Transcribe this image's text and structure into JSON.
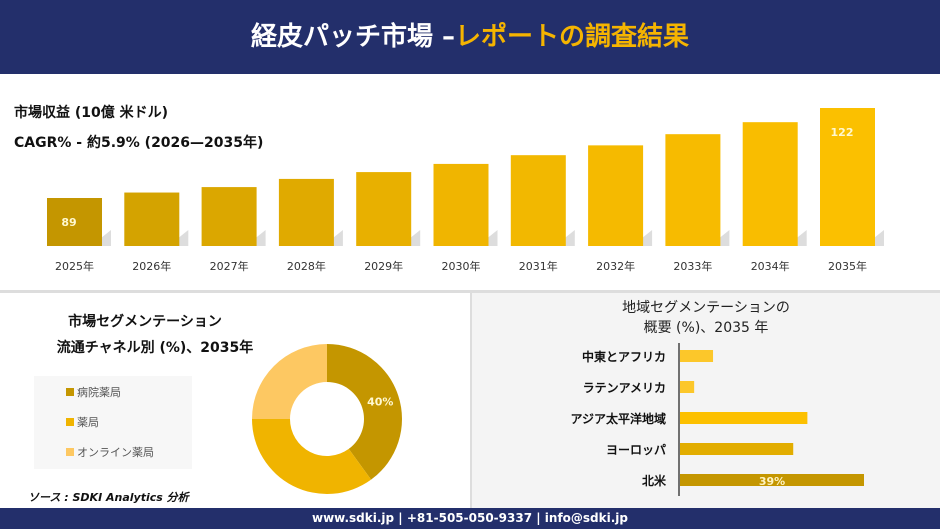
{
  "header": {
    "title_main": "経皮パッチ市場 –",
    "title_accent": "レポートの調査結果"
  },
  "revenue": {
    "label": "市場収益 (10億 米ドル)",
    "cagr": "CAGR% - 約5.9% (2026—2035年)"
  },
  "chart_data": [
    {
      "type": "bar",
      "categories": [
        "2025年",
        "2026年",
        "2027年",
        "2028年",
        "2029年",
        "2030年",
        "2031年",
        "2032年",
        "2033年",
        "2034年",
        "2035年"
      ],
      "values": [
        89,
        91,
        93,
        96,
        98.5,
        101.5,
        104.7,
        108.3,
        112.4,
        116.8,
        122
      ],
      "data_labels": {
        "0": "89",
        "10": "122"
      },
      "colors": [
        "#c49600",
        "#d4a300",
        "#dba700",
        "#e0aa00",
        "#e8b000",
        "#f0b500",
        "#f2b800",
        "#f5ba00",
        "#f7bb00",
        "#f9bd00",
        "#fbc000"
      ]
    },
    {
      "type": "pie",
      "title": "市場セグメンテーション 流通チャネル別 (%)、2035年",
      "title_lines": [
        "市場セグメンテーション",
        "流通チャネル別 (%)、2035年"
      ],
      "labels": [
        "病院薬局",
        "薬局",
        "オンライン薬局"
      ],
      "values": [
        40,
        35,
        25
      ],
      "colors": [
        "#c49600",
        "#f0b400",
        "#fdc862"
      ],
      "data_labels": [
        "40%",
        "",
        ""
      ]
    },
    {
      "type": "bar",
      "orientation": "horizontal",
      "title_lines": [
        "地域セグメンテーションの",
        "概要 (%)、2035 年"
      ],
      "categories": [
        "中東とアフリカ",
        "ラテンアメリカ",
        "アジア太平洋地域",
        "ヨーロッパ",
        "北米"
      ],
      "values": [
        7,
        3,
        27,
        24,
        39
      ],
      "colors": [
        "#fcc72a",
        "#fcc72a",
        "#fcc000",
        "#e2ad00",
        "#c49600"
      ],
      "data_labels": [
        "",
        "",
        "",
        "",
        "39%"
      ]
    }
  ],
  "source": "ソース : SDKI Analytics 分析",
  "footer": "www.sdki.jp | +81-505-050-9337 | info@sdki.jp"
}
